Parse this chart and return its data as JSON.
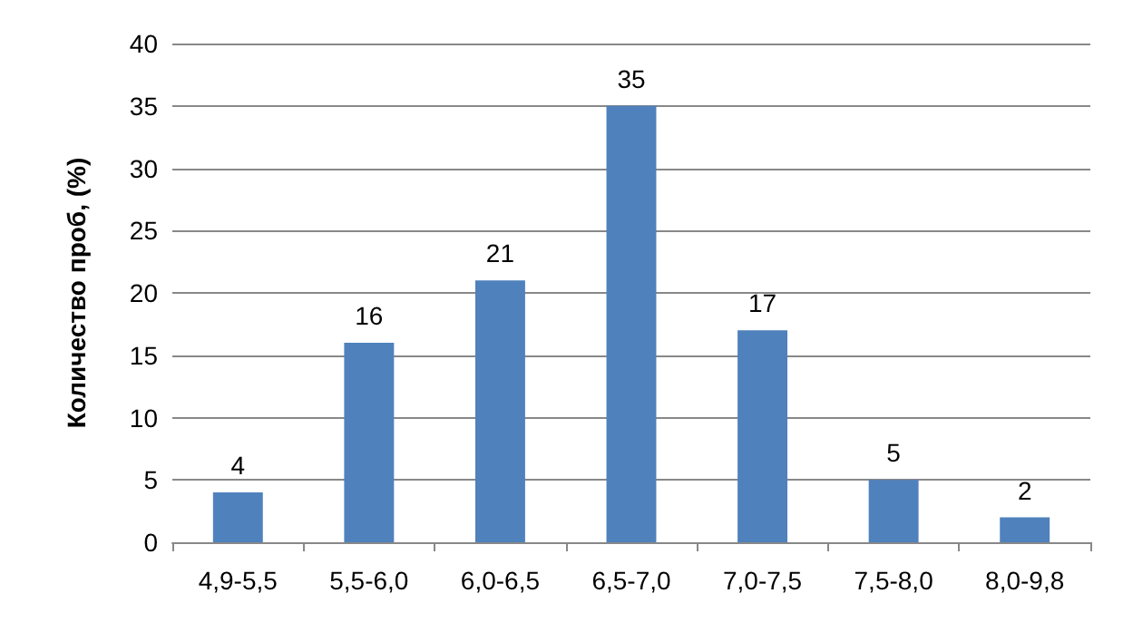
{
  "chart_data": {
    "type": "bar",
    "ylabel": "Количество проб, (%)",
    "categories": [
      "4,9-5,5",
      "5,5-6,0",
      "6,0-6,5",
      "6,5-7,0",
      "7,0-7,5",
      "7,5-8,0",
      "8,0-9,8"
    ],
    "values": [
      4,
      16,
      21,
      35,
      17,
      5,
      2
    ],
    "color": "#4f81bd",
    "ylim": [
      0,
      40
    ],
    "yticks": [
      0,
      5,
      10,
      15,
      20,
      25,
      30,
      35,
      40
    ],
    "grid": "y",
    "data_labels": true
  }
}
